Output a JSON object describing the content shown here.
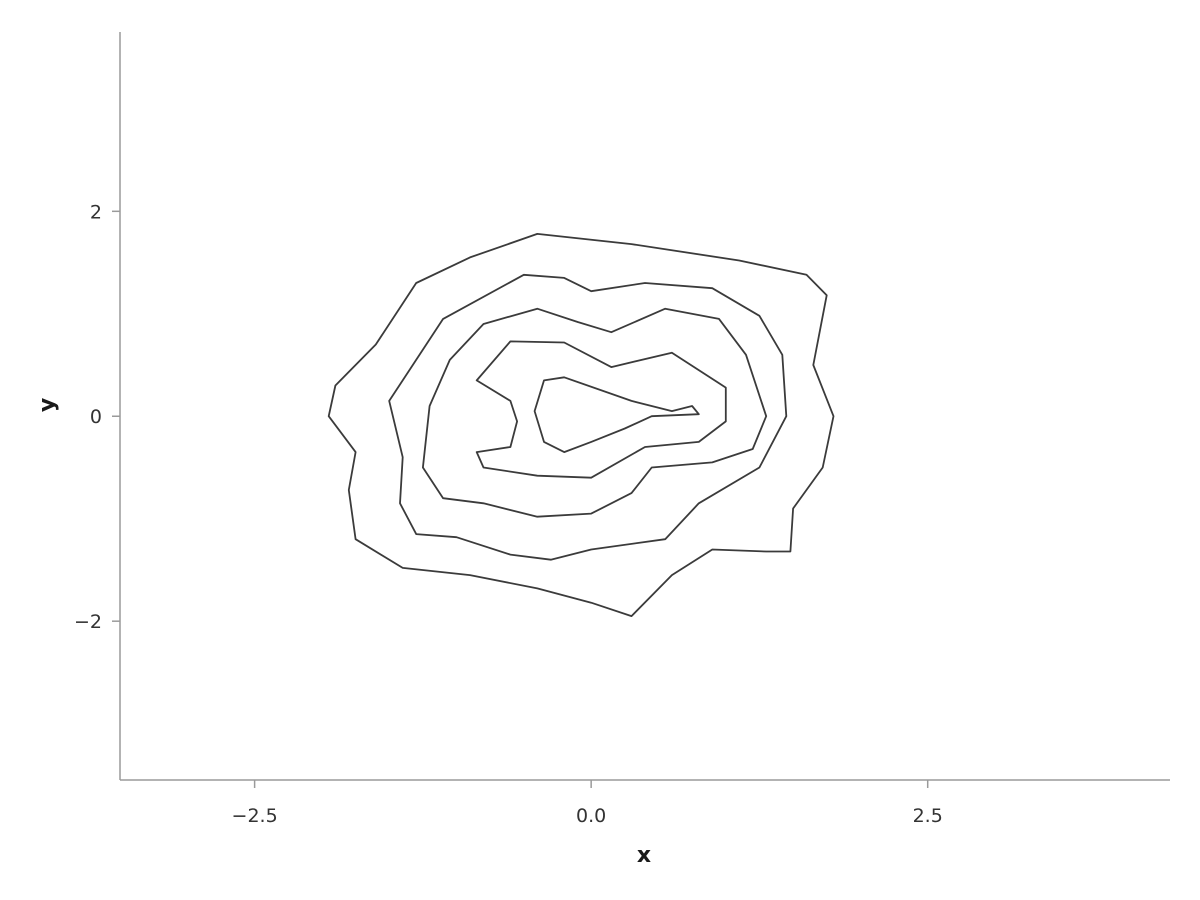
{
  "chart_data": {
    "type": "contour",
    "title": "",
    "xlabel": "x",
    "ylabel": "y",
    "xlim": [
      -3.5,
      4.3
    ],
    "ylim": [
      -3.55,
      3.75
    ],
    "xticks": [
      {
        "value": -2.5,
        "label": "−2.5"
      },
      {
        "value": 0,
        "label": "0.0"
      },
      {
        "value": 2.5,
        "label": "2.5"
      }
    ],
    "yticks": [
      {
        "value": 2,
        "label": "2"
      },
      {
        "value": 0,
        "label": "0"
      },
      {
        "value": -2,
        "label": "−2"
      }
    ],
    "grid": false,
    "legend": "none",
    "line_color": "#3b3b3b",
    "levels": [
      {
        "name": "",
        "points": [
          [
            -1.9,
            0.3
          ],
          [
            -1.6,
            0.7
          ],
          [
            -1.3,
            1.3
          ],
          [
            -0.9,
            1.55
          ],
          [
            -0.4,
            1.78
          ],
          [
            0.3,
            1.68
          ],
          [
            1.1,
            1.52
          ],
          [
            1.6,
            1.38
          ],
          [
            1.75,
            1.18
          ],
          [
            1.65,
            0.5
          ],
          [
            1.8,
            0.0
          ],
          [
            1.72,
            -0.5
          ],
          [
            1.5,
            -0.9
          ],
          [
            1.48,
            -1.32
          ],
          [
            1.3,
            -1.32
          ],
          [
            0.9,
            -1.3
          ],
          [
            0.6,
            -1.55
          ],
          [
            0.3,
            -1.95
          ],
          [
            0.0,
            -1.82
          ],
          [
            -0.4,
            -1.68
          ],
          [
            -0.9,
            -1.55
          ],
          [
            -1.4,
            -1.48
          ],
          [
            -1.75,
            -1.2
          ],
          [
            -1.8,
            -0.72
          ],
          [
            -1.75,
            -0.35
          ],
          [
            -1.95,
            0.0
          ]
        ]
      },
      {
        "name": "",
        "points": [
          [
            -1.5,
            0.15
          ],
          [
            -1.1,
            0.95
          ],
          [
            -0.5,
            1.38
          ],
          [
            -0.2,
            1.35
          ],
          [
            0.0,
            1.22
          ],
          [
            0.4,
            1.3
          ],
          [
            0.9,
            1.25
          ],
          [
            1.25,
            0.98
          ],
          [
            1.42,
            0.6
          ],
          [
            1.45,
            0.0
          ],
          [
            1.25,
            -0.5
          ],
          [
            0.8,
            -0.85
          ],
          [
            0.55,
            -1.2
          ],
          [
            0.0,
            -1.3
          ],
          [
            -0.3,
            -1.4
          ],
          [
            -0.6,
            -1.35
          ],
          [
            -1.0,
            -1.18
          ],
          [
            -1.3,
            -1.15
          ],
          [
            -1.42,
            -0.85
          ],
          [
            -1.4,
            -0.4
          ]
        ]
      },
      {
        "name": "",
        "points": [
          [
            -1.2,
            0.1
          ],
          [
            -1.05,
            0.55
          ],
          [
            -0.8,
            0.9
          ],
          [
            -0.4,
            1.05
          ],
          [
            -0.1,
            0.92
          ],
          [
            0.15,
            0.82
          ],
          [
            0.55,
            1.05
          ],
          [
            0.95,
            0.95
          ],
          [
            1.15,
            0.6
          ],
          [
            1.3,
            0.0
          ],
          [
            1.2,
            -0.32
          ],
          [
            0.9,
            -0.45
          ],
          [
            0.45,
            -0.5
          ],
          [
            0.3,
            -0.75
          ],
          [
            0.0,
            -0.95
          ],
          [
            -0.4,
            -0.98
          ],
          [
            -0.8,
            -0.85
          ],
          [
            -1.1,
            -0.8
          ],
          [
            -1.25,
            -0.5
          ]
        ]
      },
      {
        "name": "",
        "points": [
          [
            -0.85,
            0.35
          ],
          [
            -0.6,
            0.73
          ],
          [
            -0.2,
            0.72
          ],
          [
            0.15,
            0.48
          ],
          [
            0.6,
            0.62
          ],
          [
            1.0,
            0.28
          ],
          [
            1.0,
            -0.05
          ],
          [
            0.8,
            -0.25
          ],
          [
            0.4,
            -0.3
          ],
          [
            0.0,
            -0.6
          ],
          [
            -0.4,
            -0.58
          ],
          [
            -0.8,
            -0.5
          ],
          [
            -0.85,
            -0.35
          ],
          [
            -0.6,
            -0.3
          ],
          [
            -0.55,
            -0.05
          ],
          [
            -0.6,
            0.15
          ]
        ]
      },
      {
        "name": "",
        "points": [
          [
            -0.35,
            0.35
          ],
          [
            -0.2,
            0.38
          ],
          [
            0.3,
            0.15
          ],
          [
            0.6,
            0.05
          ],
          [
            0.75,
            0.1
          ],
          [
            0.8,
            0.02
          ],
          [
            0.45,
            0.0
          ],
          [
            0.25,
            -0.12
          ],
          [
            0.0,
            -0.25
          ],
          [
            -0.2,
            -0.35
          ],
          [
            -0.35,
            -0.25
          ],
          [
            -0.42,
            0.05
          ]
        ]
      }
    ]
  }
}
